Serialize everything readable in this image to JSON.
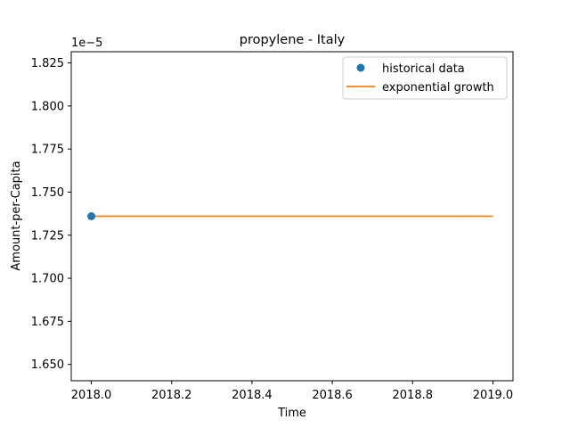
{
  "chart_data": {
    "type": "line",
    "title": "propylene - Italy",
    "xlabel": "Time",
    "ylabel": "Amount-per-Capita",
    "y_offset_label": "1e−5",
    "y_scale_factor": 1e-05,
    "xlim": [
      2017.95,
      2019.05
    ],
    "ylim": [
      1.6405,
      1.8315
    ],
    "x_ticks": [
      2018.0,
      2018.2,
      2018.4,
      2018.6,
      2018.8,
      2019.0
    ],
    "x_tick_labels": [
      "2018.0",
      "2018.2",
      "2018.4",
      "2018.6",
      "2018.8",
      "2019.0"
    ],
    "y_ticks": [
      1.65,
      1.675,
      1.7,
      1.725,
      1.75,
      1.775,
      1.8,
      1.825
    ],
    "y_tick_labels": [
      "1.650",
      "1.675",
      "1.700",
      "1.725",
      "1.750",
      "1.775",
      "1.800",
      "1.825"
    ],
    "grid": false,
    "legend_position": "top-right",
    "series": [
      {
        "name": "historical data",
        "kind": "scatter",
        "color": "#1f77b4",
        "x": [
          2018.0
        ],
        "y": [
          1.736
        ]
      },
      {
        "name": "exponential growth",
        "kind": "line",
        "color": "#ff7f0e",
        "x": [
          2018.0,
          2019.0
        ],
        "y": [
          1.736,
          1.736
        ]
      }
    ]
  }
}
